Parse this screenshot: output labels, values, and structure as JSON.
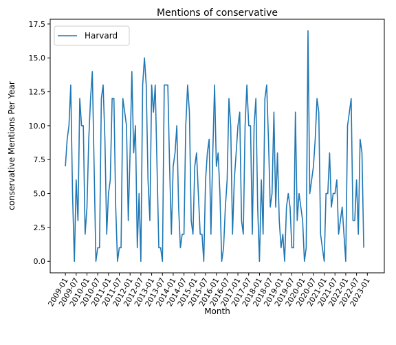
{
  "chart_data": {
    "type": "line",
    "title": "Mentions of conservative",
    "xlabel": "Month",
    "ylabel": "conservative Mentions Per Year",
    "ylim": [
      -0.85,
      17.85
    ],
    "yticks": [
      0.0,
      2.5,
      5.0,
      7.5,
      10.0,
      12.5,
      15.0,
      17.5
    ],
    "ytick_labels": [
      "0.0",
      "2.5",
      "5.0",
      "7.5",
      "10.0",
      "12.5",
      "15.0",
      "17.5"
    ],
    "xtick_labels": [
      "2009-01",
      "2009-07",
      "2010-01",
      "2010-07",
      "2011-01",
      "2011-07",
      "2012-01",
      "2012-07",
      "2013-01",
      "2013-07",
      "2014-01",
      "2014-07",
      "2015-01",
      "2015-07",
      "2016-01",
      "2016-07",
      "2017-01",
      "2017-07",
      "2018-01",
      "2018-07",
      "2019-01",
      "2019-07",
      "2020-01",
      "2020-07",
      "2021-01",
      "2021-07",
      "2022-01",
      "2022-07",
      "2023-01"
    ],
    "x_start": "2009-01",
    "x_end": "2023-02",
    "grid": false,
    "legend": "upper-left",
    "colors": {
      "series": "#1f77b4"
    },
    "series": [
      {
        "name": "Harvard",
        "values": [
          7,
          9,
          10,
          13,
          5,
          0,
          6,
          3,
          12,
          10,
          10,
          2,
          4,
          9,
          12,
          14,
          7,
          0,
          1,
          1,
          12,
          13,
          9,
          2,
          5,
          6,
          12,
          12,
          4,
          0,
          1,
          1,
          12,
          11,
          10,
          3,
          8,
          14,
          8,
          10,
          1,
          5,
          0,
          13,
          15,
          13,
          6,
          3,
          13,
          11,
          13,
          7,
          1,
          1,
          0,
          13,
          13,
          13,
          7,
          2,
          7,
          8,
          10,
          4,
          1,
          2,
          2,
          10,
          13,
          11,
          3,
          2,
          7,
          8,
          5,
          2,
          2,
          0,
          6,
          8,
          9,
          2,
          8,
          13,
          7,
          8,
          5,
          0,
          1,
          4,
          6,
          12,
          10,
          2,
          6,
          8,
          10,
          11,
          3,
          2,
          10,
          13,
          10,
          10,
          2,
          10,
          12,
          4,
          0,
          6,
          2,
          12,
          13,
          9,
          4,
          5,
          11,
          4,
          8,
          3,
          1,
          2,
          0,
          4,
          5,
          4,
          1,
          1,
          11,
          3,
          5,
          4,
          3,
          0,
          1,
          17,
          5,
          6,
          7,
          9,
          12,
          11,
          2,
          1,
          0,
          5,
          5,
          8,
          4,
          5,
          5,
          6,
          2,
          3,
          4,
          2,
          0,
          10,
          11,
          12,
          3,
          3,
          6,
          2,
          9,
          8,
          1
        ]
      }
    ]
  }
}
